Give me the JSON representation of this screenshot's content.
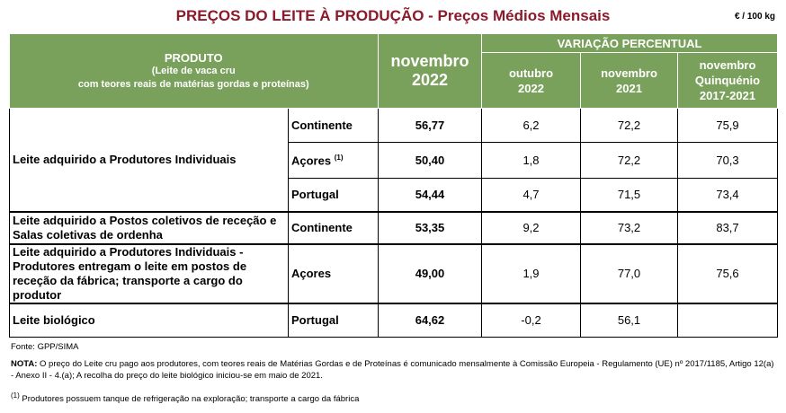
{
  "title": "PREÇOS DO LEITE À PRODUÇÃO - Preços Médios Mensais",
  "unit": "€ / 100 kg",
  "header": {
    "produto": "PRODUTO",
    "produto_sub1": "(Leite de vaca cru",
    "produto_sub2": "com teores reais de matérias gordas e proteínas)",
    "month_line1": "novembro",
    "month_line2": "2022",
    "variacao": "VARIAÇÃO PERCENTUAL",
    "col1_line1": "outubro",
    "col1_line2": "2022",
    "col2_line1": "novembro",
    "col2_line2": "2021",
    "col3_line1": "novembro",
    "col3_line2": "Quinquénio",
    "col3_line3": "2017-2021"
  },
  "rows": [
    {
      "product": "Leite adquirido a Produtores Individuais",
      "region": "Continente",
      "value": "56,77",
      "v1": "6,2",
      "v2": "72,2",
      "v3": "75,9"
    },
    {
      "region": "Açores",
      "region_sup": "(1)",
      "value": "50,40",
      "v1": "1,8",
      "v2": "72,2",
      "v3": "70,3"
    },
    {
      "region": "Portugal",
      "value": "54,44",
      "v1": "4,7",
      "v2": "71,5",
      "v3": "73,4"
    },
    {
      "product": "Leite adquirido a Postos coletivos de receção e Salas coletivas de ordenha",
      "region": "Continente",
      "value": "53,35",
      "v1": "9,2",
      "v2": "73,2",
      "v3": "83,7"
    },
    {
      "product": "Leite adquirido a Produtores Individuais - Produtores entregam o leite em postos de receção da fábrica; transporte a cargo do produtor",
      "region": "Açores",
      "value": "49,00",
      "v1": "1,9",
      "v2": "77,0",
      "v3": "75,6"
    },
    {
      "product": "Leite biológico",
      "region": "Portugal",
      "value": "64,62",
      "v1": "-0,2",
      "v2": "56,1",
      "v3": ""
    }
  ],
  "footer": {
    "fonte": "Fonte: GPP/SIMA",
    "nota_label": "NOTA:",
    "nota_text": " O preço do Leite cru pago aos produtores, com teores reais de Matérias Gordas e de Proteínas é comunicado mensalmente à Comissão Europeia - Regulamento (UE) nº 2017/1185, Artigo 12(a) - Anexo II - 4.(a); A recolha do preço do leite biológico iniciou-se em maio de 2021.",
    "footnote_mark": "(1)",
    "footnote_text": " Produtores possuem tanque de refrigeração na exploração; transporte a cargo da fábrica"
  }
}
